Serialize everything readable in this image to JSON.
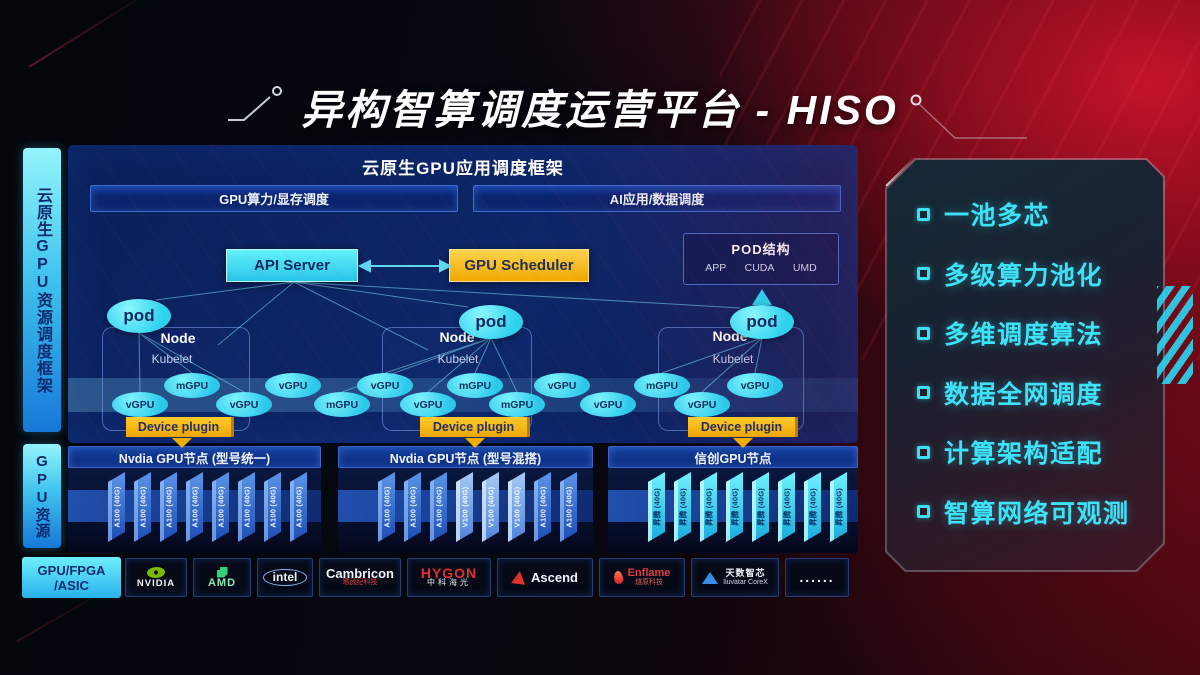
{
  "page": {
    "title": "异构智算调度运营平台 - HISO"
  },
  "sidebar": {
    "framework_label": "云原生GPU资源调度框架",
    "resource_label": "GPU资源",
    "hardware_lines": [
      "GPU/FPGA",
      "/ASIC"
    ]
  },
  "scheduler": {
    "header": "云原生GPU应用调度框架",
    "compute_bar": "GPU算力/显存调度",
    "ai_bar": "AI应用/数据调度",
    "api_server": "API Server",
    "gpu_scheduler": "GPU Scheduler",
    "pod_struct": {
      "title": "POD结构",
      "layers": [
        "APP",
        "CUDA",
        "UMD"
      ]
    },
    "labels": {
      "pod": "pod",
      "node": "Node",
      "kubelet": "Kubelet",
      "device_plugin": "Device plugin"
    },
    "gpu_units": [
      "vGPU",
      "mGPU",
      "vGPU",
      "vGPU",
      "mGPU",
      "vGPU",
      "vGPU",
      "mGPU",
      "mGPU",
      "vGPU",
      "vGPU",
      "mGPU",
      "vGPU",
      "vGPU"
    ]
  },
  "gpu_nodes": [
    {
      "title": "Nvdia GPU节点 (型号统一)",
      "cards": [
        {
          "label": "A100 (40G)",
          "type": "a100"
        },
        {
          "label": "A100 (40G)",
          "type": "a100"
        },
        {
          "label": "A100 (40G)",
          "type": "a100"
        },
        {
          "label": "A100 (40G)",
          "type": "a100"
        },
        {
          "label": "A100 (40G)",
          "type": "a100"
        },
        {
          "label": "A100 (40G)",
          "type": "a100"
        },
        {
          "label": "A100 (40G)",
          "type": "a100"
        },
        {
          "label": "A100 (40G)",
          "type": "a100"
        }
      ]
    },
    {
      "title": "Nvdia GPU节点 (型号混搭)",
      "cards": [
        {
          "label": "A100 (40G)",
          "type": "a100"
        },
        {
          "label": "A100 (40G)",
          "type": "a100"
        },
        {
          "label": "A100 (40G)",
          "type": "a100"
        },
        {
          "label": "V100 (40G)",
          "type": "v100"
        },
        {
          "label": "V100 (40G)",
          "type": "v100"
        },
        {
          "label": "V100 (40G)",
          "type": "v100"
        },
        {
          "label": "A100 (40G)",
          "type": "a100"
        },
        {
          "label": "A100 (40G)",
          "type": "a100"
        }
      ]
    },
    {
      "title": "信创GPU节点",
      "cards": [
        {
          "label": "昇腾 (40G)",
          "type": "sc"
        },
        {
          "label": "昇腾 (40G)",
          "type": "sc"
        },
        {
          "label": "昇腾 (40G)",
          "type": "sc"
        },
        {
          "label": "昇腾 (40G)",
          "type": "sc"
        },
        {
          "label": "昇腾 (40G)",
          "type": "sc"
        },
        {
          "label": "昇腾 (40G)",
          "type": "sc"
        },
        {
          "label": "昇腾 (40G)",
          "type": "sc"
        },
        {
          "label": "昇腾 (40G)",
          "type": "sc"
        }
      ]
    }
  ],
  "vendors": [
    {
      "id": "nvidia",
      "name": "NVIDIA",
      "sub": ""
    },
    {
      "id": "amd",
      "name": "AMD",
      "sub": ""
    },
    {
      "id": "intel",
      "name": "intel",
      "sub": ""
    },
    {
      "id": "cambricon",
      "name": "Cambricon",
      "sub": "寒武纪科技"
    },
    {
      "id": "hygon",
      "name": "HYGON",
      "sub": "中科海光"
    },
    {
      "id": "ascend",
      "name": "Ascend",
      "sub": ""
    },
    {
      "id": "enflame",
      "name": "Enflame",
      "sub": "燧原科技"
    },
    {
      "id": "iluvatar",
      "name": "天数智芯",
      "sub": "Iluvatar CoreX"
    },
    {
      "id": "more",
      "name": "......",
      "sub": ""
    }
  ],
  "features": [
    "一池多芯",
    "多级算力池化",
    "多维调度算法",
    "数据全网调度",
    "计算架构适配",
    "智算网络可观测"
  ],
  "colors": {
    "cyan": "#3ce0f5",
    "gold": "#f2ae00",
    "red_accent": "#c01025",
    "card_blue": "#1c4cb4"
  }
}
